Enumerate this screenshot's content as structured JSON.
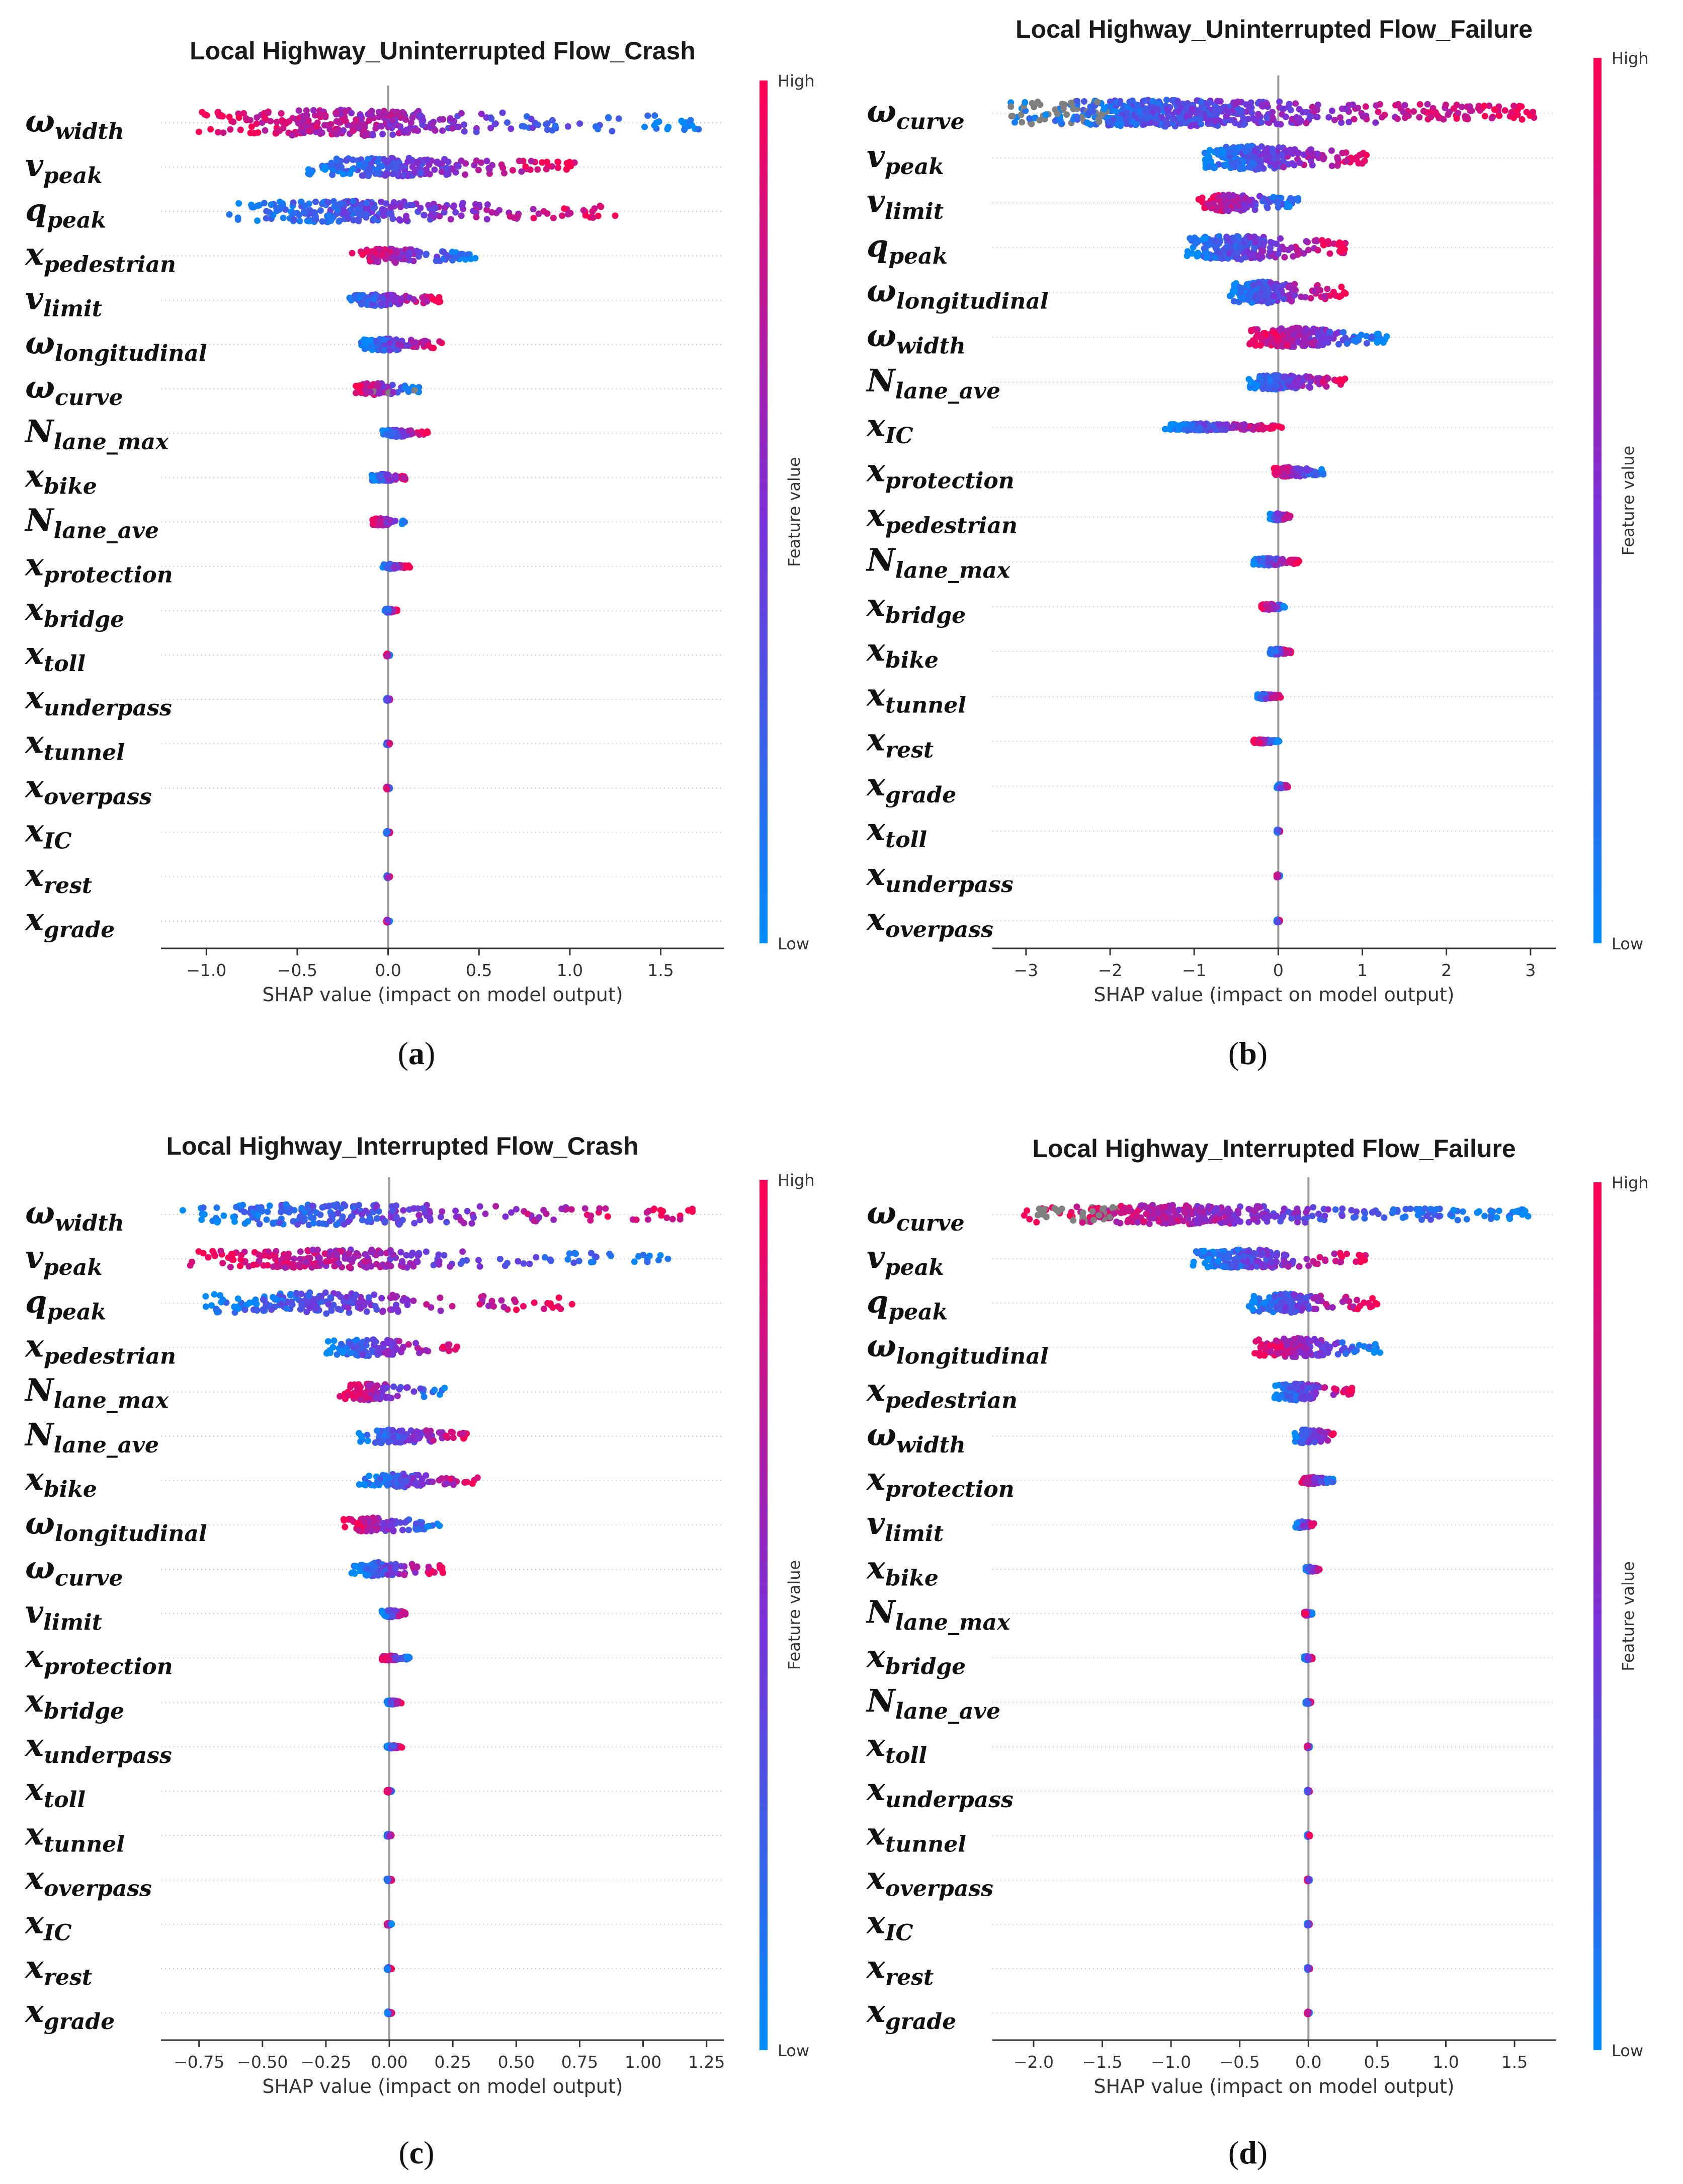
{
  "colors": {
    "low": "#1e88e5",
    "high": "#ff0052",
    "zero_line": "#999999",
    "grid": "#cccccc",
    "missing": "#808080"
  },
  "chart_data": [
    {
      "type": "scatter",
      "subtype": "shap_beeswarm",
      "panel_label": "a",
      "title": "Local Highway_Uninterrupted Flow_Crash",
      "xlabel": "SHAP value (impact on model output)",
      "colorbar_label": "Feature value",
      "colorbar_high": "High",
      "colorbar_low": "Low",
      "xlim": [
        -1.25,
        1.85
      ],
      "xticks": [
        -1.0,
        -0.5,
        0.0,
        0.5,
        1.0,
        1.5
      ],
      "xtick_labels": [
        "−1.0",
        "−0.5",
        "0.0",
        "0.5",
        "1.0",
        "1.5"
      ],
      "features": [
        {
          "sym": "ω",
          "sub": "width",
          "min": -1.1,
          "max": 1.72,
          "spread": 0.55
        },
        {
          "sym": "v",
          "sub": "peak",
          "min": -0.48,
          "max": 1.05,
          "spread": 0.4
        },
        {
          "sym": "q",
          "sub": "peak",
          "min": -0.88,
          "max": 1.28,
          "spread": 0.45
        },
        {
          "sym": "x",
          "sub": "pedestrian",
          "min": -0.2,
          "max": 0.48,
          "spread": 0.3
        },
        {
          "sym": "v",
          "sub": "limit",
          "min": -0.23,
          "max": 0.3,
          "spread": 0.25
        },
        {
          "sym": "ω",
          "sub": "longitudinal",
          "min": -0.15,
          "max": 0.3,
          "spread": 0.25
        },
        {
          "sym": "ω",
          "sub": "curve",
          "min": -0.18,
          "max": 0.18,
          "spread": 0.25
        },
        {
          "sym": "N",
          "sub": "lane_max",
          "min": -0.05,
          "max": 0.22,
          "spread": 0.15
        },
        {
          "sym": "x",
          "sub": "bike",
          "min": -0.1,
          "max": 0.12,
          "spread": 0.15
        },
        {
          "sym": "N",
          "sub": "lane_ave",
          "min": -0.1,
          "max": 0.1,
          "spread": 0.15
        },
        {
          "sym": "x",
          "sub": "protection",
          "min": -0.03,
          "max": 0.12,
          "spread": 0.1
        },
        {
          "sym": "x",
          "sub": "bridge",
          "min": -0.02,
          "max": 0.05,
          "spread": 0.08
        },
        {
          "sym": "x",
          "sub": "toll",
          "min": -0.01,
          "max": 0.01,
          "spread": 0.05
        },
        {
          "sym": "x",
          "sub": "underpass",
          "min": -0.01,
          "max": 0.01,
          "spread": 0.05
        },
        {
          "sym": "x",
          "sub": "tunnel",
          "min": -0.01,
          "max": 0.01,
          "spread": 0.05
        },
        {
          "sym": "x",
          "sub": "overpass",
          "min": -0.01,
          "max": 0.01,
          "spread": 0.05
        },
        {
          "sym": "x",
          "sub": "IC",
          "min": -0.01,
          "max": 0.01,
          "spread": 0.05
        },
        {
          "sym": "x",
          "sub": "rest",
          "min": -0.01,
          "max": 0.01,
          "spread": 0.05
        },
        {
          "sym": "x",
          "sub": "grade",
          "min": -0.01,
          "max": 0.01,
          "spread": 0.05
        }
      ]
    },
    {
      "type": "scatter",
      "subtype": "shap_beeswarm",
      "panel_label": "b",
      "title": "Local Highway_Uninterrupted Flow_Failure",
      "xlabel": "SHAP value (impact on model output)",
      "colorbar_label": "Feature value",
      "colorbar_high": "High",
      "colorbar_low": "Low",
      "xlim": [
        -3.4,
        3.3
      ],
      "xticks": [
        -3,
        -2,
        -1,
        0,
        1,
        2,
        3
      ],
      "xtick_labels": [
        "−3",
        "−2",
        "−1",
        "0",
        "1",
        "2",
        "3"
      ],
      "features": [
        {
          "sym": "ω",
          "sub": "curve",
          "min": -3.2,
          "max": 3.05,
          "spread": 0.55
        },
        {
          "sym": "v",
          "sub": "peak",
          "min": -0.9,
          "max": 1.05,
          "spread": 0.5
        },
        {
          "sym": "v",
          "sub": "limit",
          "min": -0.95,
          "max": 0.25,
          "spread": 0.35
        },
        {
          "sym": "q",
          "sub": "peak",
          "min": -1.1,
          "max": 0.85,
          "spread": 0.5
        },
        {
          "sym": "ω",
          "sub": "longitudinal",
          "min": -0.6,
          "max": 0.8,
          "spread": 0.45
        },
        {
          "sym": "ω",
          "sub": "width",
          "min": -0.35,
          "max": 1.3,
          "spread": 0.4
        },
        {
          "sym": "N",
          "sub": "lane_ave",
          "min": -0.35,
          "max": 0.8,
          "spread": 0.3
        },
        {
          "sym": "x",
          "sub": "IC",
          "min": -1.35,
          "max": 0.05,
          "spread": 0.15
        },
        {
          "sym": "x",
          "sub": "protection",
          "min": -0.05,
          "max": 0.55,
          "spread": 0.2
        },
        {
          "sym": "x",
          "sub": "pedestrian",
          "min": -0.1,
          "max": 0.15,
          "spread": 0.15
        },
        {
          "sym": "N",
          "sub": "lane_max",
          "min": -0.3,
          "max": 0.25,
          "spread": 0.15
        },
        {
          "sym": "x",
          "sub": "bridge",
          "min": -0.2,
          "max": 0.1,
          "spread": 0.12
        },
        {
          "sym": "x",
          "sub": "bike",
          "min": -0.1,
          "max": 0.15,
          "spread": 0.12
        },
        {
          "sym": "x",
          "sub": "tunnel",
          "min": -0.25,
          "max": 0.03,
          "spread": 0.1
        },
        {
          "sym": "x",
          "sub": "rest",
          "min": -0.3,
          "max": 0.02,
          "spread": 0.08
        },
        {
          "sym": "x",
          "sub": "grade",
          "min": -0.02,
          "max": 0.12,
          "spread": 0.08
        },
        {
          "sym": "x",
          "sub": "toll",
          "min": -0.02,
          "max": 0.02,
          "spread": 0.06
        },
        {
          "sym": "x",
          "sub": "underpass",
          "min": -0.02,
          "max": 0.02,
          "spread": 0.06
        },
        {
          "sym": "x",
          "sub": "overpass",
          "min": -0.02,
          "max": 0.02,
          "spread": 0.06
        }
      ]
    },
    {
      "type": "scatter",
      "subtype": "shap_beeswarm",
      "panel_label": "c",
      "title": "Local Highway_Interrupted Flow_Crash",
      "xlabel": "SHAP value (impact on model output)",
      "colorbar_label": "Feature value",
      "colorbar_high": "High",
      "colorbar_low": "Low",
      "xlim": [
        -0.9,
        1.32
      ],
      "xticks": [
        -0.75,
        -0.5,
        -0.25,
        0.0,
        0.25,
        0.5,
        0.75,
        1.0,
        1.25
      ],
      "xtick_labels": [
        "−0.75",
        "−0.50",
        "−0.25",
        "0.00",
        "0.25",
        "0.50",
        "0.75",
        "1.00",
        "1.25"
      ],
      "features": [
        {
          "sym": "ω",
          "sub": "width",
          "min": -0.82,
          "max": 1.22,
          "spread": 0.45
        },
        {
          "sym": "v",
          "sub": "peak",
          "min": -0.8,
          "max": 1.12,
          "spread": 0.4
        },
        {
          "sym": "q",
          "sub": "peak",
          "min": -0.75,
          "max": 0.72,
          "spread": 0.45
        },
        {
          "sym": "x",
          "sub": "pedestrian",
          "min": -0.25,
          "max": 0.27,
          "spread": 0.35
        },
        {
          "sym": "N",
          "sub": "lane_max",
          "min": -0.2,
          "max": 0.22,
          "spread": 0.35
        },
        {
          "sym": "N",
          "sub": "lane_ave",
          "min": -0.12,
          "max": 0.33,
          "spread": 0.3
        },
        {
          "sym": "x",
          "sub": "bike",
          "min": -0.12,
          "max": 0.38,
          "spread": 0.3
        },
        {
          "sym": "ω",
          "sub": "longitudinal",
          "min": -0.18,
          "max": 0.2,
          "spread": 0.3
        },
        {
          "sym": "ω",
          "sub": "curve",
          "min": -0.15,
          "max": 0.22,
          "spread": 0.3
        },
        {
          "sym": "v",
          "sub": "limit",
          "min": -0.03,
          "max": 0.07,
          "spread": 0.15
        },
        {
          "sym": "x",
          "sub": "protection",
          "min": -0.03,
          "max": 0.08,
          "spread": 0.1
        },
        {
          "sym": "x",
          "sub": "bridge",
          "min": -0.01,
          "max": 0.05,
          "spread": 0.08
        },
        {
          "sym": "x",
          "sub": "underpass",
          "min": -0.01,
          "max": 0.05,
          "spread": 0.06
        },
        {
          "sym": "x",
          "sub": "toll",
          "min": -0.01,
          "max": 0.01,
          "spread": 0.05
        },
        {
          "sym": "x",
          "sub": "tunnel",
          "min": -0.01,
          "max": 0.01,
          "spread": 0.05
        },
        {
          "sym": "x",
          "sub": "overpass",
          "min": -0.01,
          "max": 0.01,
          "spread": 0.05
        },
        {
          "sym": "x",
          "sub": "IC",
          "min": -0.01,
          "max": 0.01,
          "spread": 0.05
        },
        {
          "sym": "x",
          "sub": "rest",
          "min": -0.01,
          "max": 0.01,
          "spread": 0.05
        },
        {
          "sym": "x",
          "sub": "grade",
          "min": -0.01,
          "max": 0.01,
          "spread": 0.05
        }
      ]
    },
    {
      "type": "scatter",
      "subtype": "shap_beeswarm",
      "panel_label": "d",
      "title": "Local Highway_Interrupted Flow_Failure",
      "xlabel": "SHAP value (impact on model output)",
      "colorbar_label": "Feature value",
      "colorbar_high": "High",
      "colorbar_low": "Low",
      "xlim": [
        -2.3,
        1.8
      ],
      "xticks": [
        -2.0,
        -1.5,
        -1.0,
        -0.5,
        0.0,
        0.5,
        1.0,
        1.5
      ],
      "xtick_labels": [
        "−2.0",
        "−1.5",
        "−1.0",
        "−0.5",
        "0.0",
        "0.5",
        "1.0",
        "1.5"
      ],
      "features": [
        {
          "sym": "ω",
          "sub": "curve",
          "min": -2.1,
          "max": 1.6,
          "spread": 0.4
        },
        {
          "sym": "v",
          "sub": "peak",
          "min": -0.85,
          "max": 0.45,
          "spread": 0.4
        },
        {
          "sym": "q",
          "sub": "peak",
          "min": -0.45,
          "max": 0.5,
          "spread": 0.4
        },
        {
          "sym": "ω",
          "sub": "longitudinal",
          "min": -0.4,
          "max": 0.55,
          "spread": 0.4
        },
        {
          "sym": "x",
          "sub": "pedestrian",
          "min": -0.25,
          "max": 0.32,
          "spread": 0.35
        },
        {
          "sym": "ω",
          "sub": "width",
          "min": -0.1,
          "max": 0.2,
          "spread": 0.3
        },
        {
          "sym": "x",
          "sub": "protection",
          "min": -0.05,
          "max": 0.2,
          "spread": 0.15
        },
        {
          "sym": "v",
          "sub": "limit",
          "min": -0.1,
          "max": 0.05,
          "spread": 0.15
        },
        {
          "sym": "x",
          "sub": "bike",
          "min": -0.02,
          "max": 0.08,
          "spread": 0.1
        },
        {
          "sym": "N",
          "sub": "lane_max",
          "min": -0.03,
          "max": 0.03,
          "spread": 0.08
        },
        {
          "sym": "x",
          "sub": "bridge",
          "min": -0.03,
          "max": 0.03,
          "spread": 0.08
        },
        {
          "sym": "N",
          "sub": "lane_ave",
          "min": -0.02,
          "max": 0.02,
          "spread": 0.06
        },
        {
          "sym": "x",
          "sub": "toll",
          "min": -0.01,
          "max": 0.01,
          "spread": 0.05
        },
        {
          "sym": "x",
          "sub": "underpass",
          "min": -0.01,
          "max": 0.01,
          "spread": 0.05
        },
        {
          "sym": "x",
          "sub": "tunnel",
          "min": -0.01,
          "max": 0.01,
          "spread": 0.05
        },
        {
          "sym": "x",
          "sub": "overpass",
          "min": -0.01,
          "max": 0.01,
          "spread": 0.05
        },
        {
          "sym": "x",
          "sub": "IC",
          "min": -0.01,
          "max": 0.01,
          "spread": 0.05
        },
        {
          "sym": "x",
          "sub": "rest",
          "min": -0.01,
          "max": 0.01,
          "spread": 0.05
        },
        {
          "sym": "x",
          "sub": "grade",
          "min": -0.01,
          "max": 0.01,
          "spread": 0.05
        }
      ]
    }
  ]
}
